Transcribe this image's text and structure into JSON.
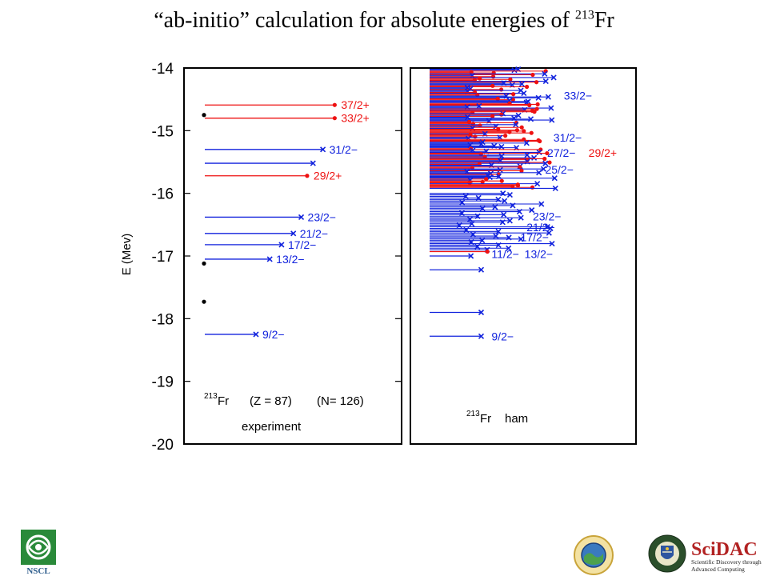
{
  "slide": {
    "title_main": "“ab-initio” calculation for absolute energies of ",
    "title_sup": "213",
    "title_end": "Fr"
  },
  "logos": {
    "nscl": "NSCL",
    "scidac_name": "SciDAC",
    "scidac_line1": "Scientific Discovery through",
    "scidac_line2": "Advanced Computing"
  },
  "colors": {
    "red": "#ee1111",
    "blue": "#1122dd",
    "black": "#000000",
    "nscl_green": "#2a8a3a",
    "scidac_red": "#b22222"
  },
  "chart_data": {
    "type": "level-scheme",
    "ylabel": "E (Mev)",
    "ylim": [
      -20,
      -14
    ],
    "yticks": [
      -14,
      -15,
      -16,
      -17,
      -18,
      -19,
      -20
    ],
    "panels": [
      {
        "id": "experiment",
        "header_nucleus_sup": "213",
        "header_nucleus": "Fr",
        "header_z": "(Z = 87)",
        "header_n": "(N= 126)",
        "footer": "experiment",
        "dots": [
          -14.75,
          -17.12,
          -17.73
        ],
        "levels": [
          {
            "e": -14.59,
            "color": "red",
            "marker": "dot",
            "label": "37/2+",
            "len": 0.66
          },
          {
            "e": -14.8,
            "color": "red",
            "marker": "dot",
            "label": "33/2+",
            "len": 0.66
          },
          {
            "e": -15.3,
            "color": "blue",
            "marker": "x",
            "label": "31/2−",
            "len": 0.6
          },
          {
            "e": -15.52,
            "color": "blue",
            "marker": "x",
            "label": "",
            "len": 0.55
          },
          {
            "e": -15.72,
            "color": "red",
            "marker": "dot",
            "label": "29/2+",
            "len": 0.52
          },
          {
            "e": -16.38,
            "color": "blue",
            "marker": "x",
            "label": "23/2−",
            "len": 0.49
          },
          {
            "e": -16.64,
            "color": "blue",
            "marker": "x",
            "label": "21/2−",
            "len": 0.45
          },
          {
            "e": -16.82,
            "color": "blue",
            "marker": "x",
            "label": "17/2−",
            "len": 0.39
          },
          {
            "e": -17.05,
            "color": "blue",
            "marker": "x",
            "label": "13/2−",
            "len": 0.33
          },
          {
            "e": -18.25,
            "color": "blue",
            "marker": "x",
            "label": "9/2−",
            "len": 0.26
          }
        ]
      },
      {
        "id": "ham",
        "header_nucleus_sup": "213",
        "header_nucleus": "Fr",
        "header_label": "ham",
        "labels": [
          {
            "e": -14.44,
            "color": "blue",
            "label": "33/2−",
            "at": 0.65
          },
          {
            "e": -15.11,
            "color": "blue",
            "label": "31/2−",
            "at": 0.6
          },
          {
            "e": -15.35,
            "color": "blue",
            "label": "27/2−",
            "at": 0.57
          },
          {
            "e": -15.35,
            "color": "red",
            "label": "29/2+",
            "at": 0.77
          },
          {
            "e": -15.62,
            "color": "blue",
            "label": "25/2−",
            "at": 0.56
          },
          {
            "e": -16.37,
            "color": "blue",
            "label": "23/2−",
            "at": 0.5
          },
          {
            "e": -16.54,
            "color": "blue",
            "label": "21/2−",
            "at": 0.47
          },
          {
            "e": -16.7,
            "color": "blue",
            "label": "17/2−",
            "at": 0.44
          },
          {
            "e": -16.97,
            "color": "blue",
            "label": "11/2−",
            "at": 0.3
          },
          {
            "e": -16.97,
            "color": "blue",
            "label": "13/2−",
            "at": 0.46
          },
          {
            "e": -18.28,
            "color": "blue",
            "label": "9/2−",
            "at": 0.3
          }
        ],
        "isolated_levels": [
          {
            "e": -16.93,
            "color": "red",
            "marker": "dot",
            "len": 0.28
          },
          {
            "e": -17.0,
            "color": "blue",
            "marker": "x",
            "len": 0.2
          },
          {
            "e": -17.22,
            "color": "blue",
            "marker": "x",
            "len": 0.25
          },
          {
            "e": -17.9,
            "color": "blue",
            "marker": "x",
            "len": 0.25
          },
          {
            "e": -18.28,
            "color": "blue",
            "marker": "x",
            "len": 0.25
          }
        ],
        "band_low": {
          "e_min": -16.0,
          "e_max": -16.9,
          "count": 38,
          "color": "blue",
          "len_min": 0.12,
          "len_max": 0.6
        },
        "band_high": {
          "e_min": -14.02,
          "e_max": -15.92,
          "count": 130,
          "colors": [
            "red",
            "blue"
          ],
          "len_min": 0.25,
          "len_max": 0.85
        }
      }
    ]
  }
}
